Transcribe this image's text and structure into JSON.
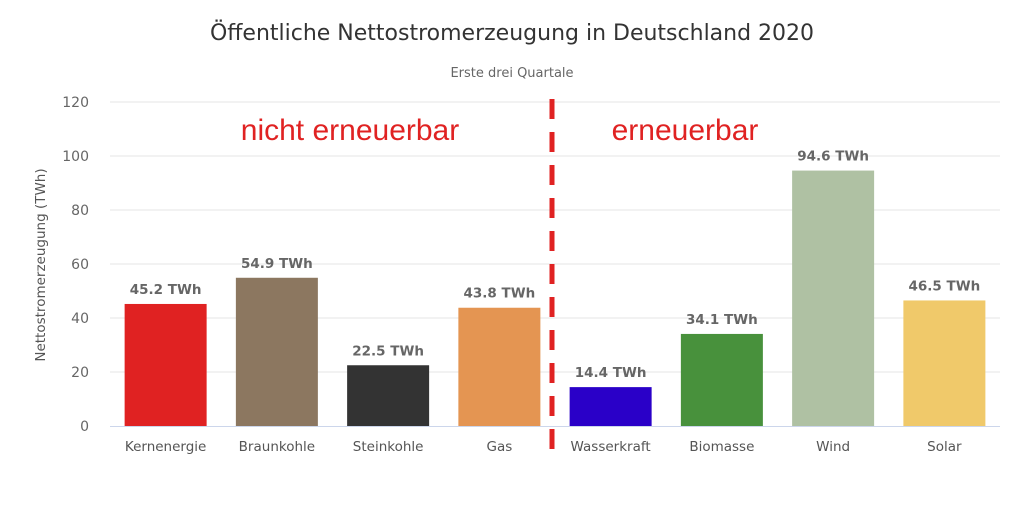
{
  "chart_data": {
    "type": "bar",
    "title": "Öffentliche Nettostromerzeugung in Deutschland 2020",
    "subtitle": "Erste drei Quartale",
    "xlabel": "",
    "ylabel": "Nettostromerzeugung (TWh)",
    "ylim": [
      0,
      120
    ],
    "yticks": [
      0,
      20,
      40,
      60,
      80,
      100,
      120
    ],
    "grid": true,
    "legend": "none",
    "categories": [
      "Kernenergie",
      "Braunkohle",
      "Steinkohle",
      "Gas",
      "Wasserkraft",
      "Biomasse",
      "Wind",
      "Solar"
    ],
    "values": [
      45.2,
      54.9,
      22.5,
      43.8,
      14.4,
      34.1,
      94.6,
      46.5
    ],
    "data_labels": [
      "45.2 TWh",
      "54.9 TWh",
      "22.5 TWh",
      "43.8 TWh",
      "14.4 TWh",
      "34.1 TWh",
      "94.6 TWh",
      "46.5 TWh"
    ],
    "colors": [
      "#e02222",
      "#8c7760",
      "#333333",
      "#e49552",
      "#2a00c8",
      "#48913c",
      "#afc1a3",
      "#f0c96a"
    ],
    "annotations": [
      {
        "text": "nicht erneuerbar",
        "color": "#e02222",
        "group": "left"
      },
      {
        "text": "erneuerbar",
        "color": "#e02222",
        "group": "right"
      }
    ],
    "divider": {
      "style": "dashed",
      "color": "#e02222",
      "between": [
        "Gas",
        "Wasserkraft"
      ]
    }
  }
}
